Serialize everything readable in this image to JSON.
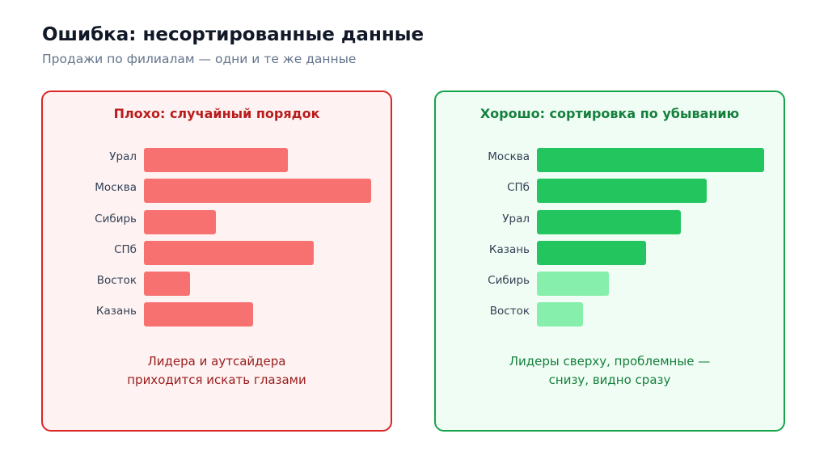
{
  "header": {
    "title": "Ошибка: несортированные данные",
    "subtitle": "Продажи по филиалам — одни и те же данные"
  },
  "colors": {
    "bad_bar": "#f87171",
    "good_bar_strong": "#22c55e",
    "good_bar_weak": "#86efac",
    "bad_border": "#dc2626",
    "good_border": "#16a34a"
  },
  "chart_data": [
    {
      "type": "bar",
      "orientation": "horizontal",
      "title": "Плохо: случайный порядок",
      "categories": [
        "Урал",
        "Москва",
        "Сибирь",
        "СПб",
        "Восток",
        "Казань"
      ],
      "values": [
        62,
        98,
        31,
        73,
        20,
        47
      ],
      "xlim": [
        0,
        100
      ],
      "note_lines": [
        "Лидера и аутсайдера",
        "приходится искать глазами"
      ]
    },
    {
      "type": "bar",
      "orientation": "horizontal",
      "title": "Хорошо: сортировка по убыванию",
      "categories": [
        "Москва",
        "СПб",
        "Урал",
        "Казань",
        "Сибирь",
        "Восток"
      ],
      "values": [
        98,
        73,
        62,
        47,
        31,
        20
      ],
      "highlight": [
        "strong",
        "strong",
        "strong",
        "strong",
        "weak",
        "weak"
      ],
      "xlim": [
        0,
        100
      ],
      "note_lines": [
        "Лидеры сверху, проблемные —",
        "снизу, видно сразу"
      ]
    }
  ]
}
